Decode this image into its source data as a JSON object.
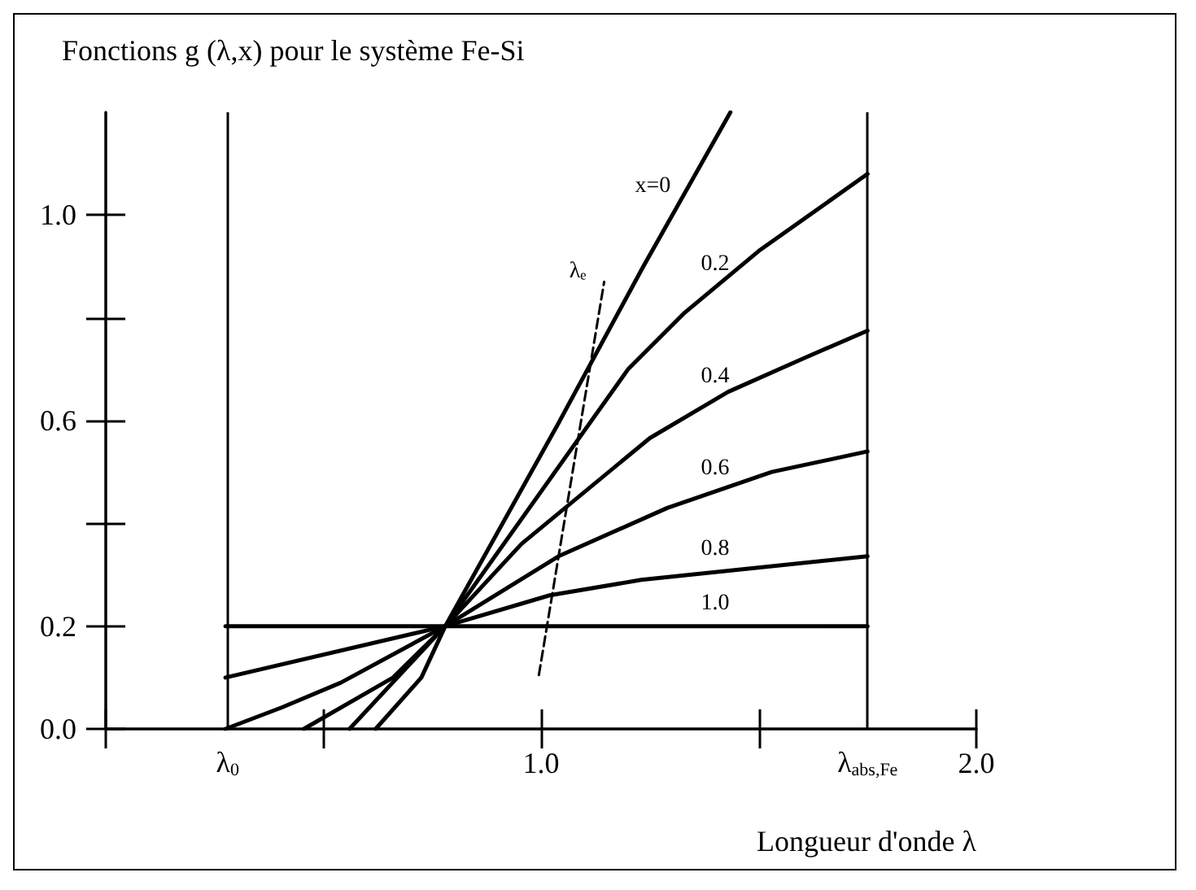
{
  "chart_data": {
    "type": "line",
    "title": "Fonctions g (λ,x) pour le système Fe-Si",
    "xlabel": "Longueur d'onde λ",
    "xlim": [
      0,
      2
    ],
    "xticks": [
      {
        "value": 0,
        "label": null
      },
      {
        "value": 0.5,
        "label": null
      },
      {
        "value": 1,
        "label": "1.0"
      },
      {
        "value": 1.5,
        "label": null
      },
      {
        "value": 2,
        "label": "2.0"
      }
    ],
    "ylim": [
      0,
      1.2
    ],
    "yticks": [
      {
        "value": 0,
        "label": "0.0"
      },
      {
        "value": 0.2,
        "label": "0.2"
      },
      {
        "value": 0.4,
        "label": null
      },
      {
        "value": 0.6,
        "label": "0.6"
      },
      {
        "value": 0.8,
        "label": null
      },
      {
        "value": 1,
        "label": "1.0"
      }
    ],
    "grid": false,
    "legend": false,
    "marker": "none",
    "series": [
      {
        "name": "x=0",
        "color": "#000000",
        "x": [
          0.62,
          0.725,
          0.78,
          1.04,
          1.235,
          1.435
        ],
        "values": [
          0,
          0.1,
          0.2,
          0.595,
          0.9,
          1.2
        ]
      },
      {
        "name": "0.2",
        "color": "#000000",
        "x": [
          0.56,
          0.78,
          1.2,
          1.33,
          1.5,
          1.75
        ],
        "values": [
          0,
          0.2,
          0.7,
          0.81,
          0.93,
          1.08
        ]
      },
      {
        "name": "0.4",
        "color": "#000000",
        "x": [
          0.455,
          0.66,
          0.78,
          0.955,
          1.25,
          1.43,
          1.6,
          1.75
        ],
        "values": [
          0,
          0.1,
          0.2,
          0.36,
          0.566,
          0.656,
          0.72,
          0.775
        ]
      },
      {
        "name": "0.6",
        "color": "#000000",
        "x": [
          0.275,
          0.405,
          0.54,
          0.78,
          1.04,
          1.29,
          1.53,
          1.75
        ],
        "values": [
          0,
          0.042,
          0.09,
          0.2,
          0.336,
          0.43,
          0.5,
          0.54
        ]
      },
      {
        "name": "0.8",
        "color": "#000000",
        "x": [
          0.275,
          0.78,
          1.02,
          1.23,
          1.75
        ],
        "values": [
          0.1,
          0.2,
          0.26,
          0.29,
          0.336
        ]
      },
      {
        "name": "1.0",
        "color": "#000000",
        "x": [
          0.275,
          1.75
        ],
        "values": [
          0.2,
          0.2
        ]
      },
      {
        "name": "λₑ",
        "color": "#000000",
        "line_style": "dashed",
        "x": [
          0.995,
          1.145
        ],
        "values": [
          0.105,
          0.87
        ]
      }
    ],
    "ref_lines": [
      {
        "axis": "x",
        "value": 0.275,
        "label": "λ$_{0}$",
        "color": "#000000"
      },
      {
        "axis": "x",
        "value": 1.75,
        "label": "λ$_{abs,Fe}$",
        "color": "#000000"
      }
    ]
  }
}
